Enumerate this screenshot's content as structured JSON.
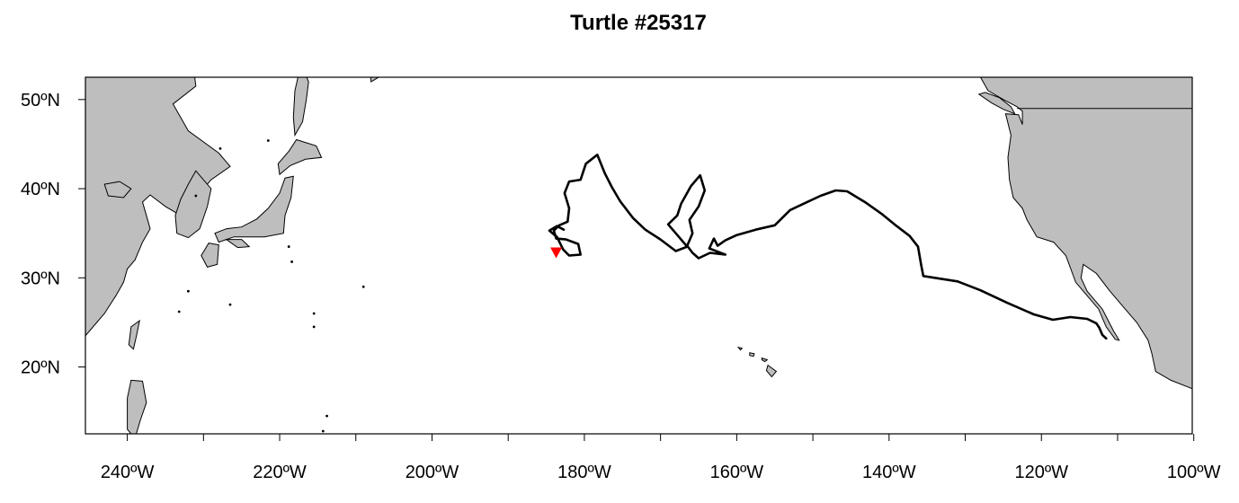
{
  "title": "Turtle #25317",
  "map": {
    "lon_range": [
      -245.5,
      -100.2
    ],
    "lat_range": [
      12.5,
      52.5
    ],
    "land_color": "#bebebe",
    "coast_color": "#000000",
    "x_ticks": [
      -240,
      -230,
      -220,
      -210,
      -200,
      -190,
      -180,
      -170,
      -160,
      -150,
      -140,
      -130,
      -120,
      -110,
      -100
    ],
    "x_tick_labels": [
      {
        "lon": -240,
        "label": "240ºW"
      },
      {
        "lon": -220,
        "label": "220ºW"
      },
      {
        "lon": -200,
        "label": "200ºW"
      },
      {
        "lon": -180,
        "label": "180ºW"
      },
      {
        "lon": -160,
        "label": "160ºW"
      },
      {
        "lon": -140,
        "label": "140ºW"
      },
      {
        "lon": -120,
        "label": "120ºW"
      },
      {
        "lon": -100,
        "label": "100ºW"
      }
    ],
    "y_ticks": [
      {
        "lat": 50,
        "label": "50ºN"
      },
      {
        "lat": 40,
        "label": "40ºN"
      },
      {
        "lat": 30,
        "label": "30ºN"
      },
      {
        "lat": 20,
        "label": "20ºN"
      }
    ]
  },
  "track": {
    "color": "#000000",
    "points": [
      [
        -111.5,
        23.2
      ],
      [
        -112.0,
        23.6
      ],
      [
        -112.4,
        24.4
      ],
      [
        -112.8,
        24.9
      ],
      [
        -114.0,
        25.4
      ],
      [
        -116.2,
        25.6
      ],
      [
        -118.5,
        25.3
      ],
      [
        -121.0,
        25.9
      ],
      [
        -124.5,
        27.2
      ],
      [
        -128.0,
        28.6
      ],
      [
        -131.0,
        29.6
      ],
      [
        -134.0,
        30.0
      ],
      [
        -135.5,
        30.2
      ],
      [
        -135.8,
        31.5
      ],
      [
        -136.2,
        33.5
      ],
      [
        -137.3,
        34.7
      ],
      [
        -139.0,
        35.8
      ],
      [
        -141.0,
        37.2
      ],
      [
        -143.0,
        38.4
      ],
      [
        -145.5,
        39.7
      ],
      [
        -147.0,
        39.8
      ],
      [
        -149.0,
        39.2
      ],
      [
        -151.0,
        38.4
      ],
      [
        -153.0,
        37.6
      ],
      [
        -155.0,
        35.9
      ],
      [
        -157.5,
        35.4
      ],
      [
        -160.0,
        34.8
      ],
      [
        -161.5,
        34.2
      ],
      [
        -162.5,
        33.6
      ],
      [
        -163.0,
        34.4
      ],
      [
        -163.6,
        33.3
      ],
      [
        -161.5,
        32.6
      ],
      [
        -163.5,
        32.8
      ],
      [
        -165.0,
        32.2
      ],
      [
        -165.8,
        32.8
      ],
      [
        -166.5,
        33.6
      ],
      [
        -165.8,
        35.0
      ],
      [
        -166.2,
        36.5
      ],
      [
        -165.0,
        38.0
      ],
      [
        -164.2,
        39.8
      ],
      [
        -164.8,
        41.5
      ],
      [
        -166.0,
        40.3
      ],
      [
        -167.3,
        38.3
      ],
      [
        -167.8,
        37.0
      ],
      [
        -169.0,
        36.0
      ],
      [
        -168.0,
        35.0
      ],
      [
        -166.5,
        33.5
      ],
      [
        -168.0,
        33.0
      ],
      [
        -170.0,
        34.3
      ],
      [
        -172.0,
        35.4
      ],
      [
        -173.6,
        36.7
      ],
      [
        -175.3,
        38.6
      ],
      [
        -176.4,
        40.2
      ],
      [
        -177.3,
        41.7
      ],
      [
        -178.3,
        43.8
      ],
      [
        -179.8,
        42.8
      ],
      [
        -180.5,
        41.0
      ],
      [
        -182.0,
        40.8
      ],
      [
        -182.6,
        39.5
      ],
      [
        -182.0,
        37.8
      ],
      [
        -182.2,
        36.3
      ],
      [
        -183.3,
        35.9
      ],
      [
        -184.0,
        35.3
      ],
      [
        -183.7,
        34.4
      ],
      [
        -182.4,
        34.3
      ],
      [
        -180.8,
        33.8
      ],
      [
        -180.5,
        32.6
      ],
      [
        -182.0,
        32.5
      ],
      [
        -182.8,
        33.2
      ],
      [
        -183.6,
        34.6
      ],
      [
        -184.6,
        35.3
      ],
      [
        -183.6,
        35.8
      ],
      [
        -182.7,
        35.4
      ]
    ]
  },
  "end_marker": {
    "lon": -183.7,
    "lat": 32.8,
    "color": "#ff0000"
  }
}
